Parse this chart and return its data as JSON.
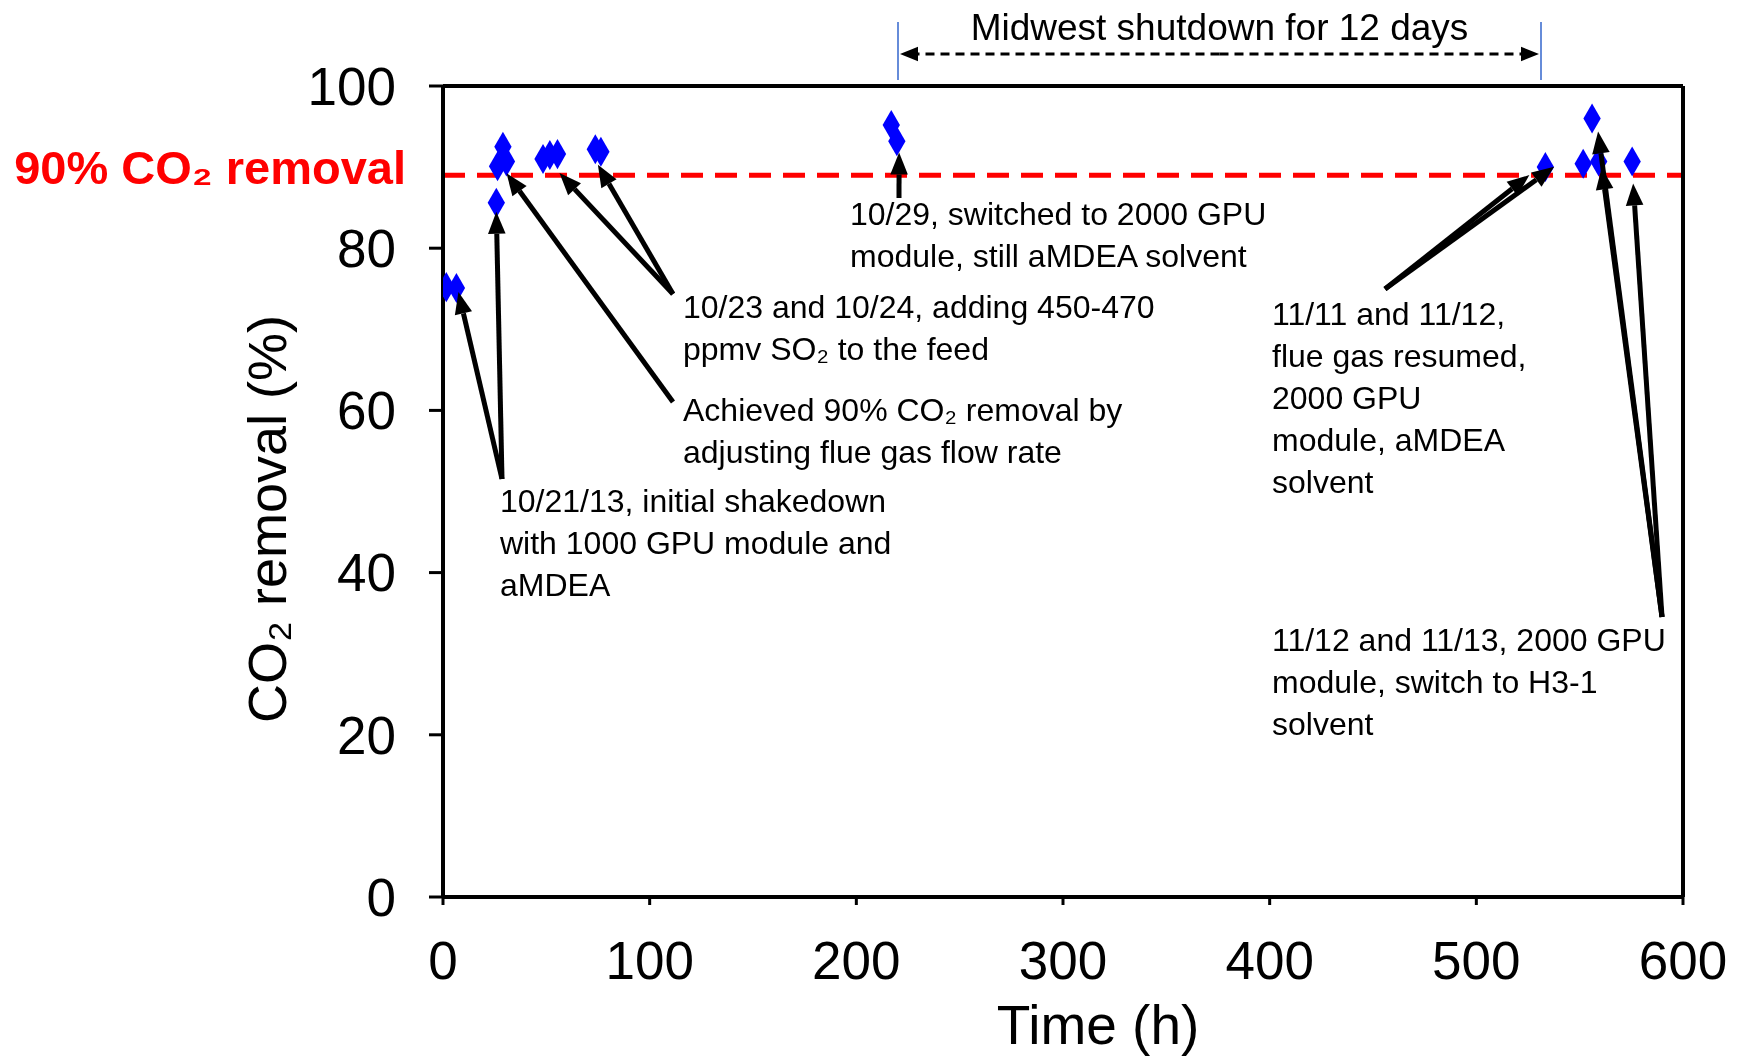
{
  "chart_data": {
    "type": "scatter",
    "xlabel": "Time (h)",
    "ylabel": "CO₂ removal (%)",
    "xlim": [
      0,
      600
    ],
    "xticks": [
      0,
      100,
      200,
      300,
      400,
      500,
      600
    ],
    "ylim": [
      0,
      100
    ],
    "yticks": [
      0,
      20,
      40,
      60,
      80,
      100
    ],
    "grid": false,
    "legend": false,
    "marker": "diamond",
    "series": [
      {
        "color": "#0000ff",
        "x": [
          1.6,
          6.5,
          25.8,
          26.4,
          29,
          30.7,
          48.4,
          51.7,
          55.4,
          73.7,
          76.4,
          216.9,
          219.6,
          533.4,
          551.7,
          556,
          559.2,
          575.4
        ],
        "values": [
          75.2,
          75.1,
          85.6,
          90.1,
          92.5,
          90.7,
          91.0,
          91.5,
          91.6,
          92.2,
          91.9,
          95.2,
          93.2,
          90.0,
          90.4,
          96.0,
          90.7,
          90.7
        ]
      }
    ],
    "ref_lines": [
      {
        "axis": "y",
        "value": 89,
        "label": "90% CO₂ removal",
        "color": "#ff0000",
        "line_style": "dashed"
      }
    ],
    "annotations": [
      "10/21/13, initial shakedown with 1000 GPU module and aMDEA",
      "Achieved 90% CO₂ removal by adjusting flue gas flow rate",
      "10/23 and 10/24, adding 450-470 ppmv SO₂ to the feed",
      {
        "text": "10/29, switched to 2000 GPU module, still aMDEA solvent",
        "x": 220.7,
        "y": 91.8
      },
      "11/11 and 11/12, flue gas resumed, 2000 GPU module, aMDEA solvent",
      {
        "text": "11/12 and 11/13, 2000 GPU module, switch to H3-1 solvent",
        "x": 559.2,
        "y": 90.7
      },
      "Midwest shutdown for 12 days"
    ]
  }
}
